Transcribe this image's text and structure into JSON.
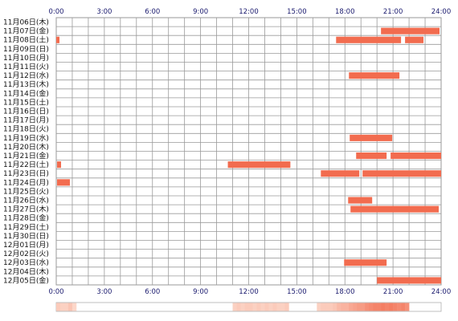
{
  "chart_data": {
    "type": "heatmap",
    "x_unit": "hour",
    "x_range": [
      0,
      24
    ],
    "x_ticks": [
      "0:00",
      "3:00",
      "6:00",
      "9:00",
      "12:00",
      "15:00",
      "18:00",
      "21:00",
      "24:00"
    ],
    "grid": true,
    "colors": {
      "bar": "#f26c4f",
      "grid": "#9a9a9a",
      "tick_text": "#1a1a6e",
      "heat_low": "#fde3d6",
      "heat_high": "#f26c4f"
    },
    "rows": [
      {
        "label": "11月06日(木)",
        "segments": []
      },
      {
        "label": "11月07日(金)",
        "segments": [
          [
            20.25,
            23.9
          ]
        ]
      },
      {
        "label": "11月08日(土)",
        "segments": [
          [
            0.0,
            0.2
          ],
          [
            17.45,
            21.5
          ],
          [
            21.75,
            22.9
          ]
        ]
      },
      {
        "label": "11月09日(日)",
        "segments": []
      },
      {
        "label": "11月10日(月)",
        "segments": []
      },
      {
        "label": "11月11日(火)",
        "segments": []
      },
      {
        "label": "11月12日(水)",
        "segments": [
          [
            18.25,
            21.4
          ]
        ]
      },
      {
        "label": "11月13日(木)",
        "segments": []
      },
      {
        "label": "11月14日(金)",
        "segments": []
      },
      {
        "label": "11月15日(土)",
        "segments": []
      },
      {
        "label": "11月16日(日)",
        "segments": []
      },
      {
        "label": "11月17日(月)",
        "segments": []
      },
      {
        "label": "11月18日(火)",
        "segments": []
      },
      {
        "label": "11月19日(水)",
        "segments": [
          [
            18.3,
            20.95
          ]
        ]
      },
      {
        "label": "11月20日(木)",
        "segments": []
      },
      {
        "label": "11月21日(金)",
        "segments": [
          [
            18.7,
            20.6
          ],
          [
            20.85,
            24.0
          ]
        ]
      },
      {
        "label": "11月22日(土)",
        "segments": [
          [
            0.05,
            0.3
          ],
          [
            10.7,
            14.6
          ]
        ]
      },
      {
        "label": "11月23日(日)",
        "segments": [
          [
            16.5,
            18.9
          ],
          [
            19.1,
            24.0
          ]
        ]
      },
      {
        "label": "11月24日(月)",
        "segments": [
          [
            0.05,
            0.85
          ]
        ]
      },
      {
        "label": "11月25日(火)",
        "segments": []
      },
      {
        "label": "11月26日(水)",
        "segments": [
          [
            18.2,
            19.7
          ]
        ]
      },
      {
        "label": "11月27日(木)",
        "segments": [
          [
            18.35,
            23.85
          ]
        ]
      },
      {
        "label": "11月28日(金)",
        "segments": []
      },
      {
        "label": "11月29日(土)",
        "segments": []
      },
      {
        "label": "11月30日(日)",
        "segments": []
      },
      {
        "label": "12月01日(月)",
        "segments": []
      },
      {
        "label": "12月02日(火)",
        "segments": []
      },
      {
        "label": "12月03日(水)",
        "segments": [
          [
            17.95,
            20.6
          ]
        ]
      },
      {
        "label": "12月04日(木)",
        "segments": []
      },
      {
        "label": "12月05日(金)",
        "segments": [
          [
            20.0,
            24.0
          ]
        ]
      }
    ],
    "summary_strip": {
      "bins_per_hour": 4,
      "values": [
        0.2,
        0.15,
        0.15,
        0.25,
        0.1,
        0,
        0,
        0,
        0,
        0,
        0,
        0,
        0,
        0,
        0,
        0,
        0,
        0,
        0,
        0,
        0,
        0,
        0,
        0,
        0,
        0,
        0,
        0,
        0,
        0,
        0,
        0,
        0,
        0,
        0,
        0,
        0,
        0,
        0,
        0,
        0,
        0,
        0,
        0,
        0.15,
        0.2,
        0.15,
        0.2,
        0.2,
        0.15,
        0.2,
        0.15,
        0.2,
        0.15,
        0.2,
        0.15,
        0.15,
        0.2,
        0,
        0,
        0,
        0,
        0,
        0,
        0,
        0.15,
        0.2,
        0.2,
        0.2,
        0.25,
        0.35,
        0.4,
        0.4,
        0.5,
        0.55,
        0.6,
        0.6,
        0.7,
        0.75,
        0.8,
        0.8,
        0.85,
        0.8,
        0.85,
        0.8,
        0.75,
        0.8,
        0.7
      ]
    }
  }
}
